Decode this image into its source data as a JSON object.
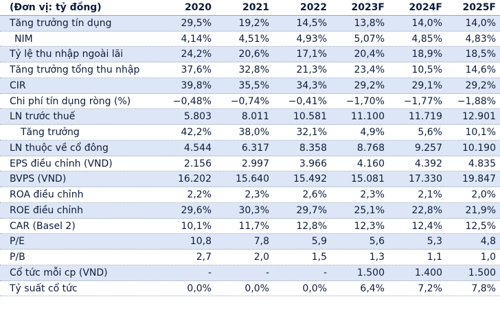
{
  "header": {
    "label": "(Đơn vị: tỷ đồng)",
    "years": [
      "2020",
      "2021",
      "2022",
      "2023F",
      "2024F",
      "2025F"
    ]
  },
  "rows": [
    {
      "label": "Tăng trưởng tín dụng",
      "values": [
        "29,5%",
        "19,2%",
        "14,5%",
        "13,8%",
        "14,0%",
        "14,0%"
      ]
    },
    {
      "label": "NIM",
      "values": [
        "4,14%",
        "4,51%",
        "4,93%",
        "5,07%",
        "4,85%",
        "4,83%"
      ]
    },
    {
      "label": "Tỷ lệ thu nhập ngoài lãi",
      "values": [
        "24,2%",
        "20,6%",
        "17,1%",
        "20,4%",
        "18,9%",
        "18,5%"
      ]
    },
    {
      "label": "Tăng trưởng tổng thu nhập",
      "values": [
        "37,6%",
        "32,8%",
        "21,3%",
        "23,4%",
        "10,5%",
        "14,6%"
      ]
    },
    {
      "label": "CIR",
      "values": [
        "39,8%",
        "35,5%",
        "34,3%",
        "29,2%",
        "29,1%",
        "29,2%"
      ]
    },
    {
      "label": "Chi phí tín dụng ròng (%)",
      "values": [
        "−0,48%",
        "−0,74%",
        "−0,41%",
        "−1,70%",
        "−1,77%",
        "−1,88%"
      ]
    },
    {
      "label": "LN trước thuế",
      "values": [
        "5.803",
        "8.011",
        "10.581",
        "11.100",
        "11.719",
        "12.901"
      ]
    },
    {
      "label": "Tăng trưởng",
      "values": [
        "42,2%",
        "38,0%",
        "32,1%",
        "4,9%",
        "5,6%",
        "10,1%"
      ]
    },
    {
      "label": "LN thuộc về cổ đông",
      "values": [
        "4.544",
        "6.317",
        "8.358",
        "8.768",
        "9.257",
        "10.190"
      ]
    },
    {
      "label": "EPS điều chỉnh (VND)",
      "values": [
        "2.156",
        "2.997",
        "3.966",
        "4.160",
        "4.392",
        "4.835"
      ]
    },
    {
      "label": "BVPS (VND)",
      "values": [
        "16.202",
        "15.640",
        "15.492",
        "15.081",
        "17.330",
        "19.847"
      ]
    },
    {
      "label": "ROA điều chỉnh",
      "values": [
        "2,2%",
        "2,3%",
        "2,6%",
        "2,3%",
        "2,1%",
        "2,0%"
      ]
    },
    {
      "label": "ROE điều chỉnh",
      "values": [
        "29,6%",
        "30,3%",
        "29,7%",
        "25,1%",
        "22,8%",
        "21,9%"
      ]
    },
    {
      "label": "CAR (Basel 2)",
      "values": [
        "10,1%",
        "11,7%",
        "12,8%",
        "12,3%",
        "12,4%",
        "12,5%"
      ]
    },
    {
      "label": "P/E",
      "values": [
        "10,8",
        "7,8",
        "5,9",
        "5,6",
        "5,3",
        "4,8"
      ]
    },
    {
      "label": "P/B",
      "values": [
        "2,7",
        "2,0",
        "1,5",
        "1,3",
        "1,1",
        "1,0"
      ]
    },
    {
      "label": "Cổ tức mỗi cp (VND)",
      "values": [
        "-",
        "-",
        "-",
        "1.500",
        "1.400",
        "1.500"
      ]
    },
    {
      "label": "Tỷ suất cổ tức",
      "values": [
        "0,0%",
        "0,0%",
        "0,0%",
        "6,4%",
        "7,2%",
        "7,8%"
      ]
    }
  ]
}
